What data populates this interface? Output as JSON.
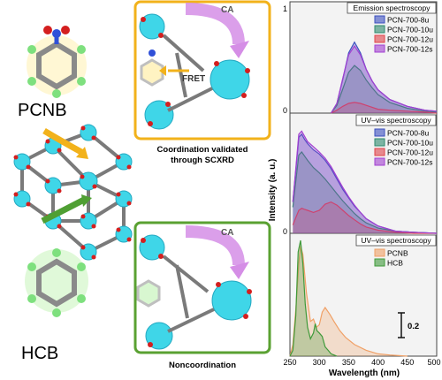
{
  "molecules": {
    "top_name": "PCNB",
    "bottom_name": "HCB"
  },
  "top_panel": {
    "title_tag": "CA",
    "fret_label": "FRET",
    "caption_line1": "Coordination validated",
    "caption_line2": "through SCXRD",
    "border_color": "#f2b21b"
  },
  "bottom_panel": {
    "title_tag": "CA",
    "caption": "Noncoordination",
    "border_color": "#5aa132"
  },
  "plot": {
    "ylabel": "Intensity (a. u.)",
    "xlabel": "Wavelength (nm)",
    "y_tick_top": "1",
    "panel2_zero": "0",
    "panel3_zero": "0",
    "x_ticks": [
      "250",
      "300",
      "350",
      "400",
      "450",
      "500"
    ],
    "scale_bar_label": "0.2",
    "panels": [
      {
        "title": "Emission spectroscopy",
        "legend": [
          "PCN-700-8u",
          "PCN-700-10u",
          "PCN-700-12u",
          "PCN-700-12s"
        ]
      },
      {
        "title": "UV–vis spectroscopy",
        "legend": [
          "PCN-700-8u",
          "PCN-700-10u",
          "PCN-700-12u",
          "PCN-700-12s"
        ]
      },
      {
        "title": "UV–vis spectroscopy",
        "legend": [
          "PCNB",
          "HCB"
        ]
      }
    ],
    "series_colors": {
      "8u": "#3b4fbf",
      "10u": "#2e8a6e",
      "12u": "#e0434a",
      "12s": "#a23fd1",
      "PCNB": "#f0a066",
      "HCB": "#3f9a3a"
    }
  },
  "chart_data": [
    {
      "type": "area",
      "title": "Emission spectroscopy",
      "xlabel": "Wavelength (nm)",
      "ylabel": "Intensity (a. u.)",
      "xlim": [
        250,
        500
      ],
      "series": [
        {
          "name": "PCN-700-8u",
          "x": [
            320,
            330,
            340,
            350,
            360,
            370,
            380,
            390,
            400,
            420,
            450,
            480,
            500
          ],
          "y": [
            0,
            0.1,
            0.35,
            0.62,
            0.73,
            0.62,
            0.45,
            0.33,
            0.24,
            0.14,
            0.07,
            0.03,
            0.02
          ]
        },
        {
          "name": "PCN-700-10u",
          "x": [
            320,
            330,
            340,
            350,
            360,
            370,
            380,
            390,
            400,
            420,
            450,
            480,
            500
          ],
          "y": [
            0,
            0.08,
            0.25,
            0.42,
            0.49,
            0.44,
            0.34,
            0.26,
            0.19,
            0.11,
            0.05,
            0.02,
            0.01
          ]
        },
        {
          "name": "PCN-700-12u",
          "x": [
            320,
            330,
            340,
            350,
            360,
            370,
            380,
            390,
            400,
            420,
            450,
            480,
            500
          ],
          "y": [
            0,
            0.03,
            0.07,
            0.1,
            0.11,
            0.1,
            0.08,
            0.06,
            0.04,
            0.03,
            0.02,
            0.01,
            0
          ]
        },
        {
          "name": "PCN-700-12s",
          "x": [
            320,
            330,
            340,
            350,
            360,
            370,
            380,
            390,
            400,
            420,
            450,
            480,
            500
          ],
          "y": [
            0,
            0.1,
            0.36,
            0.6,
            0.69,
            0.6,
            0.45,
            0.33,
            0.24,
            0.14,
            0.07,
            0.03,
            0.02
          ]
        }
      ]
    },
    {
      "type": "area",
      "title": "UV–vis spectroscopy",
      "xlabel": "Wavelength (nm)",
      "ylabel": "Intensity (a. u.)",
      "xlim": [
        250,
        500
      ],
      "series": [
        {
          "name": "PCN-700-8u",
          "x": [
            255,
            260,
            265,
            270,
            275,
            280,
            290,
            300,
            310,
            320,
            330,
            340,
            350,
            360,
            370,
            380,
            400,
            430,
            460,
            500
          ],
          "y": [
            0.3,
            0.6,
            0.92,
            0.95,
            0.9,
            0.86,
            0.8,
            0.76,
            0.7,
            0.62,
            0.52,
            0.42,
            0.34,
            0.26,
            0.2,
            0.14,
            0.07,
            0.02,
            0.01,
            0
          ]
        },
        {
          "name": "PCN-700-10u",
          "x": [
            255,
            260,
            265,
            270,
            275,
            280,
            290,
            300,
            310,
            320,
            330,
            340,
            350,
            360,
            370,
            380,
            400,
            430,
            460,
            500
          ],
          "y": [
            0.25,
            0.5,
            0.75,
            0.78,
            0.74,
            0.7,
            0.63,
            0.58,
            0.52,
            0.45,
            0.38,
            0.31,
            0.25,
            0.19,
            0.14,
            0.1,
            0.05,
            0.02,
            0.01,
            0
          ]
        },
        {
          "name": "PCN-700-12u",
          "x": [
            255,
            260,
            265,
            270,
            275,
            280,
            290,
            300,
            310,
            320,
            330,
            340,
            350,
            360,
            370,
            380,
            400,
            430,
            460,
            500
          ],
          "y": [
            0.08,
            0.15,
            0.22,
            0.24,
            0.23,
            0.22,
            0.2,
            0.22,
            0.28,
            0.3,
            0.27,
            0.22,
            0.17,
            0.13,
            0.09,
            0.06,
            0.03,
            0.01,
            0,
            0
          ]
        },
        {
          "name": "PCN-700-12s",
          "x": [
            255,
            260,
            265,
            270,
            275,
            280,
            290,
            300,
            310,
            320,
            330,
            340,
            350,
            360,
            370,
            380,
            400,
            430,
            460,
            500
          ],
          "y": [
            0.3,
            0.62,
            0.95,
            0.98,
            0.93,
            0.88,
            0.83,
            0.78,
            0.72,
            0.64,
            0.54,
            0.44,
            0.35,
            0.27,
            0.2,
            0.14,
            0.07,
            0.02,
            0.01,
            0
          ]
        }
      ]
    },
    {
      "type": "area",
      "title": "UV–vis spectroscopy",
      "xlabel": "Wavelength (nm)",
      "ylabel": "Intensity (a. u.)",
      "xlim": [
        250,
        500
      ],
      "series": [
        {
          "name": "PCNB",
          "x": [
            250,
            255,
            260,
            265,
            268,
            272,
            278,
            285,
            290,
            295,
            300,
            305,
            310,
            318,
            325,
            335,
            345,
            360,
            380,
            400,
            420,
            450
          ],
          "y": [
            0,
            0.1,
            0.4,
            0.8,
            0.95,
            0.88,
            0.55,
            0.3,
            0.32,
            0.25,
            0.27,
            0.38,
            0.42,
            0.36,
            0.3,
            0.22,
            0.16,
            0.1,
            0.05,
            0.02,
            0.01,
            0
          ]
        },
        {
          "name": "HCB",
          "x": [
            250,
            255,
            260,
            264,
            268,
            272,
            276,
            280,
            285,
            290,
            293,
            296,
            300,
            305,
            310,
            315,
            320,
            325,
            330
          ],
          "y": [
            0,
            0.05,
            0.35,
            0.9,
            1.0,
            0.8,
            0.45,
            0.25,
            0.15,
            0.2,
            0.28,
            0.22,
            0.2,
            0.17,
            0.08,
            0.05,
            0.02,
            0.01,
            0
          ]
        }
      ]
    }
  ]
}
